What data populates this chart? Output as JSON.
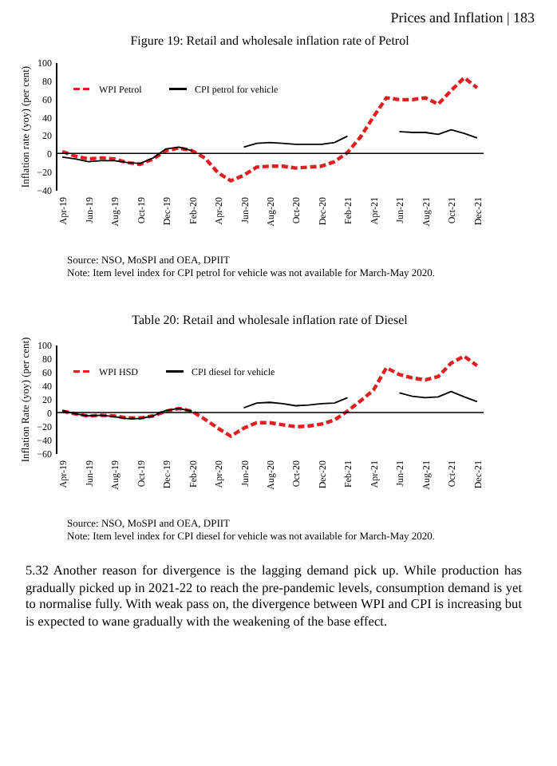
{
  "chart_data": [
    {
      "type": "line",
      "title": "Figure 19: Retail and wholesale inflation rate of Petrol",
      "ylabel": "Inflation rate (yoy) (per cent)",
      "categories": [
        "Apr-19",
        null,
        "Jun-19",
        null,
        "Aug-19",
        null,
        "Oct-19",
        null,
        "Dec-19",
        null,
        "Feb-20",
        null,
        "Apr-20",
        null,
        "Jun-20",
        null,
        "Aug-20",
        null,
        "Oct-20",
        null,
        "Dec-20",
        null,
        "Feb-21",
        null,
        "Apr-21",
        null,
        "Jun-21",
        null,
        "Aug-21",
        null,
        "Oct-21",
        null,
        "Dec-21"
      ],
      "series": [
        {
          "name": "WPI Petrol",
          "color": "#e02020",
          "line_style": "dashed",
          "values": [
            2,
            -3,
            -6,
            -5,
            -6,
            -10,
            -12,
            -6,
            3,
            6,
            3,
            -5,
            -21,
            -30,
            -24,
            -15,
            -14,
            -14,
            -16,
            -15,
            -14,
            -9,
            1,
            18,
            40,
            61,
            59,
            59,
            61,
            54,
            69,
            83,
            72
          ]
        },
        {
          "name": "CPI petrol for vehicle",
          "color": "#000000",
          "line_style": "solid",
          "values": [
            -4,
            -6,
            -9,
            -8,
            -8,
            -10,
            -11,
            -5,
            5,
            7,
            3,
            null,
            null,
            null,
            7,
            11,
            12,
            11,
            10,
            10,
            10,
            12,
            19,
            null,
            null,
            null,
            24,
            23,
            23,
            21,
            26,
            22,
            17
          ]
        }
      ],
      "ylim": [
        -40,
        100
      ],
      "yticks": [
        -40,
        -20,
        0,
        20,
        40,
        60,
        80,
        100
      ],
      "legend": "top left",
      "ref_lines": [
        {
          "axis": "y",
          "value": 0
        }
      ],
      "annotations": [
        "Prices and Inflation | 183",
        "Source: NSO, MoSPI and OEA, DPIIT",
        "Note: Item level index for CPI petrol for vehicle was not available for March-May 2020."
      ]
    },
    {
      "type": "line",
      "title": "Table 20: Retail and wholesale inflation rate of Diesel",
      "ylabel": "Inflation Rate (yoy) (per cent)",
      "categories": [
        "Apr-19",
        null,
        "Jun-19",
        null,
        "Aug-19",
        null,
        "Oct-19",
        null,
        "Dec-19",
        null,
        "Feb-20",
        null,
        "Apr-20",
        null,
        "Jun-20",
        null,
        "Aug-20",
        null,
        "Oct-20",
        null,
        "Dec-20",
        null,
        "Feb-21",
        null,
        "Apr-21",
        null,
        "Jun-21",
        null,
        "Aug-21",
        null,
        "Oct-21",
        null,
        "Dec-21"
      ],
      "series": [
        {
          "name": "WPI HSD",
          "color": "#e02020",
          "line_style": "dashed",
          "values": [
            2,
            -2,
            -5,
            -4,
            -5,
            -8,
            -8,
            -5,
            2,
            6,
            2,
            -10,
            -23,
            -35,
            -23,
            -15,
            -15,
            -18,
            -21,
            -20,
            -17,
            -11,
            2,
            17,
            33,
            66,
            56,
            51,
            48,
            53,
            73,
            83,
            69
          ]
        },
        {
          "name": "CPI diesel for vehicle",
          "color": "#000000",
          "line_style": "solid",
          "values": [
            3,
            -2,
            -5,
            -4,
            -6,
            -9,
            -9,
            -5,
            3,
            6,
            2,
            null,
            null,
            null,
            7,
            14,
            15,
            13,
            10,
            11,
            13,
            14,
            22,
            null,
            null,
            null,
            29,
            24,
            22,
            23,
            31,
            23,
            16
          ]
        }
      ],
      "ylim": [
        -60,
        100
      ],
      "yticks": [
        -60,
        -40,
        -20,
        0,
        20,
        40,
        60,
        80,
        100
      ],
      "legend": "top left",
      "ref_lines": [
        {
          "axis": "y",
          "value": 0
        }
      ],
      "annotations": [
        "Source: NSO, MoSPI and OEA, DPIIT",
        "Note: Item level index for CPI diesel for vehicle was not available for March-May 2020.",
        "5.32 Another reason for divergence is the lagging demand pick up. While production has gradually picked up in 2021-22 to reach the pre-pandemic levels, consumption demand is yet to normalise fully. With weak pass on, the divergence between WPI and CPI is increasing but is expected to wane gradually with the weakening of the base effect."
      ]
    }
  ]
}
